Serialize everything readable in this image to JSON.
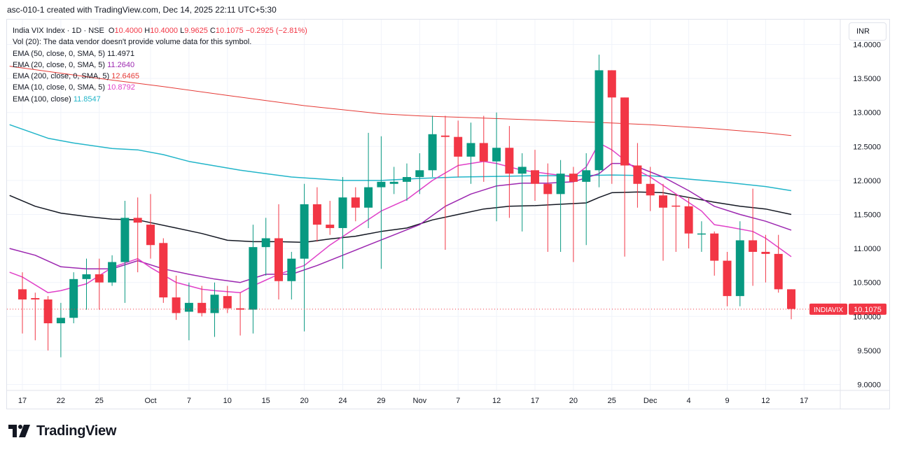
{
  "header": {
    "title": "asc-010-1 created with TradingView.com, Dec 14, 2025 22:11 UTC+5:30"
  },
  "legend": {
    "symbol_line": "India VIX Index · 1D · NSE",
    "ohlc": {
      "o_label": "O",
      "o": "10.4000",
      "h_label": "H",
      "h": "10.4000",
      "l_label": "L",
      "l": "9.9625",
      "c_label": "C",
      "c": "10.1075",
      "change": "−0.2925 (−2.81%)"
    },
    "vol": "Vol (20): The data vendor doesn't provide volume data for this symbol.",
    "indicators": [
      {
        "label": "EMA (50, close, 0, SMA, 5)",
        "value": "11.4971",
        "color": "#131722"
      },
      {
        "label": "EMA (20, close, 0, SMA, 5)",
        "value": "11.2640",
        "color": "#9c27b0"
      },
      {
        "label": "EMA (200, close, 0, SMA, 5)",
        "value": "12.6465",
        "color": "#e53935"
      },
      {
        "label": "EMA (10, close, 0, SMA, 5)",
        "value": "10.8792",
        "color": "#e040c8"
      },
      {
        "label": "EMA (100, close)",
        "value": "11.8547",
        "color": "#22b5c9"
      }
    ]
  },
  "currency": "INR",
  "brand": {
    "name": "TradingView"
  },
  "chart_data": {
    "type": "candlestick",
    "y_range": [
      8.9,
      14.1
    ],
    "y_ticks": [
      "9.0000",
      "9.5000",
      "10.0000",
      "10.5000",
      "11.0000",
      "11.5000",
      "12.0000",
      "12.5000",
      "13.0000",
      "13.5000",
      "14.0000"
    ],
    "x_ticks": [
      {
        "label": "17",
        "i": 0
      },
      {
        "label": "22",
        "i": 3
      },
      {
        "label": "25",
        "i": 6
      },
      {
        "label": "Oct",
        "i": 10
      },
      {
        "label": "7",
        "i": 13
      },
      {
        "label": "10",
        "i": 16
      },
      {
        "label": "15",
        "i": 19
      },
      {
        "label": "20",
        "i": 22
      },
      {
        "label": "24",
        "i": 25
      },
      {
        "label": "29",
        "i": 28
      },
      {
        "label": "Nov",
        "i": 31
      },
      {
        "label": "7",
        "i": 34
      },
      {
        "label": "12",
        "i": 37
      },
      {
        "label": "17",
        "i": 40
      },
      {
        "label": "20",
        "i": 43
      },
      {
        "label": "25",
        "i": 46
      },
      {
        "label": "Dec",
        "i": 49
      },
      {
        "label": "4",
        "i": 52
      },
      {
        "label": "9",
        "i": 55
      },
      {
        "label": "12",
        "i": 58
      },
      {
        "label": "17",
        "i": 61
      }
    ],
    "last_price": {
      "symbol": "INDIAVIX",
      "value": 10.1075,
      "label": "10.1075"
    },
    "candles": [
      {
        "o": 10.4,
        "h": 10.65,
        "l": 9.75,
        "c": 10.25
      },
      {
        "o": 10.27,
        "h": 10.35,
        "l": 9.65,
        "c": 10.25
      },
      {
        "o": 10.25,
        "h": 10.3,
        "l": 9.5,
        "c": 9.9
      },
      {
        "o": 9.9,
        "h": 10.2,
        "l": 9.4,
        "c": 9.98
      },
      {
        "o": 9.98,
        "h": 10.65,
        "l": 9.9,
        "c": 10.55
      },
      {
        "o": 10.55,
        "h": 10.85,
        "l": 10.1,
        "c": 10.62
      },
      {
        "o": 10.62,
        "h": 10.85,
        "l": 10.1,
        "c": 10.5
      },
      {
        "o": 10.5,
        "h": 10.9,
        "l": 10.45,
        "c": 10.8
      },
      {
        "o": 10.8,
        "h": 11.7,
        "l": 10.2,
        "c": 11.45
      },
      {
        "o": 11.45,
        "h": 11.75,
        "l": 10.65,
        "c": 11.38
      },
      {
        "o": 11.35,
        "h": 11.8,
        "l": 10.85,
        "c": 11.05
      },
      {
        "o": 11.08,
        "h": 11.15,
        "l": 10.2,
        "c": 10.28
      },
      {
        "o": 10.28,
        "h": 10.6,
        "l": 9.95,
        "c": 10.05
      },
      {
        "o": 10.07,
        "h": 10.5,
        "l": 9.65,
        "c": 10.2
      },
      {
        "o": 10.2,
        "h": 10.45,
        "l": 10.0,
        "c": 10.05
      },
      {
        "o": 10.05,
        "h": 10.5,
        "l": 9.7,
        "c": 10.32
      },
      {
        "o": 10.3,
        "h": 10.45,
        "l": 10.05,
        "c": 10.12
      },
      {
        "o": 10.12,
        "h": 10.35,
        "l": 9.72,
        "c": 10.1
      },
      {
        "o": 10.1,
        "h": 11.35,
        "l": 9.75,
        "c": 11.02
      },
      {
        "o": 11.02,
        "h": 11.45,
        "l": 10.6,
        "c": 11.15
      },
      {
        "o": 11.15,
        "h": 11.65,
        "l": 10.25,
        "c": 10.52
      },
      {
        "o": 10.52,
        "h": 10.95,
        "l": 10.25,
        "c": 10.85
      },
      {
        "o": 10.85,
        "h": 11.95,
        "l": 9.78,
        "c": 11.65
      },
      {
        "o": 11.65,
        "h": 11.9,
        "l": 11.1,
        "c": 11.35
      },
      {
        "o": 11.35,
        "h": 11.7,
        "l": 11.2,
        "c": 11.3
      },
      {
        "o": 11.3,
        "h": 12.05,
        "l": 10.7,
        "c": 11.75
      },
      {
        "o": 11.75,
        "h": 11.9,
        "l": 11.4,
        "c": 11.6
      },
      {
        "o": 11.6,
        "h": 12.7,
        "l": 11.3,
        "c": 11.9
      },
      {
        "o": 11.9,
        "h": 12.65,
        "l": 10.7,
        "c": 11.98
      },
      {
        "o": 11.95,
        "h": 12.2,
        "l": 11.8,
        "c": 11.98
      },
      {
        "o": 11.98,
        "h": 12.25,
        "l": 11.7,
        "c": 12.05
      },
      {
        "o": 12.05,
        "h": 12.4,
        "l": 11.8,
        "c": 12.15
      },
      {
        "o": 12.15,
        "h": 12.95,
        "l": 12.05,
        "c": 12.68
      },
      {
        "o": 12.66,
        "h": 12.95,
        "l": 10.98,
        "c": 12.64
      },
      {
        "o": 12.64,
        "h": 12.88,
        "l": 12.05,
        "c": 12.35
      },
      {
        "o": 12.35,
        "h": 12.85,
        "l": 11.95,
        "c": 12.55
      },
      {
        "o": 12.55,
        "h": 12.95,
        "l": 11.98,
        "c": 12.28
      },
      {
        "o": 12.28,
        "h": 13.0,
        "l": 11.4,
        "c": 12.48
      },
      {
        "o": 12.48,
        "h": 12.8,
        "l": 11.45,
        "c": 12.1
      },
      {
        "o": 12.1,
        "h": 12.4,
        "l": 11.25,
        "c": 12.2
      },
      {
        "o": 12.15,
        "h": 12.45,
        "l": 11.7,
        "c": 11.95
      },
      {
        "o": 11.95,
        "h": 12.25,
        "l": 10.95,
        "c": 11.8
      },
      {
        "o": 11.8,
        "h": 12.3,
        "l": 10.95,
        "c": 12.1
      },
      {
        "o": 12.1,
        "h": 12.2,
        "l": 10.8,
        "c": 11.98
      },
      {
        "o": 11.98,
        "h": 12.4,
        "l": 11.05,
        "c": 12.15
      },
      {
        "o": 12.15,
        "h": 13.85,
        "l": 11.9,
        "c": 13.62
      },
      {
        "o": 13.62,
        "h": 13.62,
        "l": 11.95,
        "c": 13.22
      },
      {
        "o": 13.22,
        "h": 13.22,
        "l": 10.88,
        "c": 12.22
      },
      {
        "o": 12.22,
        "h": 12.55,
        "l": 11.6,
        "c": 11.95
      },
      {
        "o": 11.95,
        "h": 12.2,
        "l": 11.55,
        "c": 11.78
      },
      {
        "o": 11.78,
        "h": 11.95,
        "l": 10.82,
        "c": 11.6
      },
      {
        "o": 11.63,
        "h": 11.8,
        "l": 10.95,
        "c": 11.62
      },
      {
        "o": 11.62,
        "h": 11.75,
        "l": 11.0,
        "c": 11.22
      },
      {
        "o": 11.22,
        "h": 11.4,
        "l": 10.95,
        "c": 11.22
      },
      {
        "o": 11.22,
        "h": 11.25,
        "l": 10.6,
        "c": 10.82
      },
      {
        "o": 10.82,
        "h": 10.95,
        "l": 10.15,
        "c": 10.3
      },
      {
        "o": 10.3,
        "h": 11.4,
        "l": 10.15,
        "c": 11.12
      },
      {
        "o": 11.12,
        "h": 11.88,
        "l": 10.45,
        "c": 10.95
      },
      {
        "o": 10.95,
        "h": 11.2,
        "l": 10.5,
        "c": 10.92
      },
      {
        "o": 10.92,
        "h": 11.2,
        "l": 10.35,
        "c": 10.4
      },
      {
        "o": 10.4,
        "h": 10.4,
        "l": 9.96,
        "c": 10.11
      }
    ],
    "series": [
      {
        "name": "EMA (200, close, 0, SMA, 5)",
        "color": "#e53935",
        "width": 1,
        "i": [
          -1,
          6,
          11,
          16,
          22,
          28,
          31,
          34,
          40,
          44,
          49,
          54,
          58,
          60
        ],
        "values": [
          13.68,
          13.5,
          13.38,
          13.25,
          13.1,
          12.98,
          12.95,
          12.93,
          12.89,
          12.86,
          12.82,
          12.76,
          12.7,
          12.66
        ]
      },
      {
        "name": "EMA (100, close)",
        "color": "#22b5c9",
        "width": 1.5,
        "i": [
          -1,
          2,
          4,
          7,
          9,
          11,
          13,
          17,
          21,
          25,
          28,
          31,
          34,
          37,
          40,
          43,
          46,
          49,
          52,
          55,
          58,
          60
        ],
        "values": [
          12.82,
          12.62,
          12.55,
          12.47,
          12.45,
          12.38,
          12.28,
          12.15,
          12.05,
          12.0,
          12.0,
          12.03,
          12.05,
          12.06,
          12.07,
          12.07,
          12.08,
          12.07,
          12.02,
          11.97,
          11.91,
          11.85
        ]
      },
      {
        "name": "EMA (50, close, 0, SMA, 5)",
        "color": "#131722",
        "width": 1.5,
        "i": [
          -1,
          1,
          3,
          5,
          7,
          9,
          10,
          12,
          14,
          16,
          18,
          20,
          22,
          24,
          26,
          28,
          30,
          32,
          34,
          36,
          38,
          40,
          42,
          44,
          45,
          46,
          48,
          50,
          52,
          54,
          56,
          58,
          60
        ],
        "values": [
          11.78,
          11.62,
          11.52,
          11.47,
          11.43,
          11.42,
          11.38,
          11.3,
          11.22,
          11.12,
          11.1,
          11.1,
          11.09,
          11.14,
          11.18,
          11.25,
          11.3,
          11.42,
          11.5,
          11.58,
          11.62,
          11.63,
          11.65,
          11.67,
          11.75,
          11.82,
          11.83,
          11.82,
          11.75,
          11.68,
          11.62,
          11.58,
          11.5
        ]
      },
      {
        "name": "EMA (20, close, 0, SMA, 5)",
        "color": "#9c27b0",
        "width": 1.5,
        "i": [
          -1,
          1,
          3,
          5,
          7,
          9,
          11,
          13,
          15,
          17,
          19,
          21,
          23,
          25,
          27,
          29,
          31,
          33,
          35,
          37,
          39,
          41,
          43,
          45,
          46,
          47,
          48,
          50,
          52,
          54,
          56,
          58,
          60
        ],
        "values": [
          11.0,
          10.9,
          10.73,
          10.7,
          10.7,
          10.82,
          10.7,
          10.62,
          10.55,
          10.5,
          10.62,
          10.62,
          10.75,
          10.9,
          11.05,
          11.2,
          11.35,
          11.62,
          11.8,
          11.92,
          11.96,
          11.96,
          11.98,
          12.1,
          12.25,
          12.25,
          12.2,
          12.05,
          11.85,
          11.62,
          11.5,
          11.4,
          11.27
        ]
      },
      {
        "name": "EMA (10, close, 0, SMA, 5)",
        "color": "#e040c8",
        "width": 1.5,
        "i": [
          -1,
          0,
          2,
          3,
          5,
          7,
          9,
          10,
          12,
          14,
          15,
          17,
          18,
          20,
          22,
          24,
          26,
          28,
          30,
          32,
          34,
          36,
          37,
          39,
          41,
          43,
          44,
          45,
          46,
          47,
          48,
          49,
          51,
          53,
          54,
          55,
          57,
          58,
          60
        ],
        "values": [
          10.65,
          10.58,
          10.35,
          10.38,
          10.48,
          10.72,
          10.85,
          10.72,
          10.5,
          10.4,
          10.38,
          10.35,
          10.45,
          10.62,
          10.75,
          11.05,
          11.3,
          11.55,
          11.72,
          12.0,
          12.22,
          12.28,
          12.25,
          12.15,
          12.1,
          12.05,
          12.2,
          12.55,
          12.45,
          12.3,
          12.15,
          12.05,
          11.8,
          11.55,
          11.35,
          11.32,
          11.25,
          11.15,
          10.88
        ]
      }
    ]
  }
}
